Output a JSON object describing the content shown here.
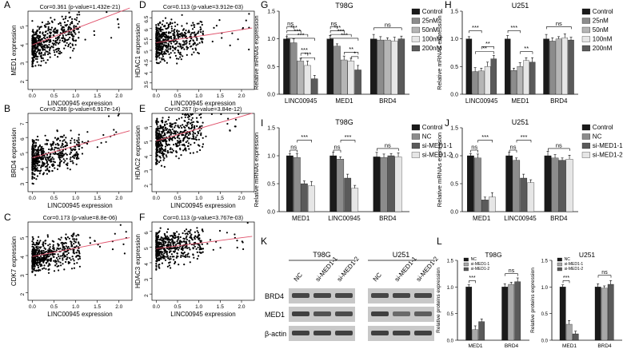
{
  "scatter_panels": [
    {
      "letter": "A",
      "cor_text": "Cor=0.361 (p-value=1.432e-21)",
      "xlabel": "LINC00945 expression",
      "ylabel": "MED1 expression",
      "xticks": [
        "0.0",
        "0.5",
        "1.0",
        "1.5",
        "2.0"
      ],
      "yticks": [
        "2",
        "3",
        "4",
        "5"
      ],
      "xlim": [
        -0.1,
        2.3
      ],
      "ylim": [
        1.5,
        5.8
      ],
      "fit": [
        3.95,
        0.9
      ],
      "center": 4.0,
      "spread": 0.55
    },
    {
      "letter": "B",
      "cor_text": "Cor=0.286 (p-value=6.917e-14)",
      "xlabel": "LINC00945 expression",
      "ylabel": "BRD4 expression",
      "xticks": [
        "0.0",
        "0.5",
        "1.0",
        "1.5",
        "2.0"
      ],
      "yticks": [
        "3",
        "4",
        "5",
        "6",
        "7"
      ],
      "xlim": [
        -0.1,
        2.3
      ],
      "ylim": [
        2.4,
        7.6
      ],
      "fit": [
        4.65,
        0.8
      ],
      "center": 4.7,
      "spread": 0.65
    },
    {
      "letter": "C",
      "cor_text": "Cor=0.173 (p-value=8.8e-06)",
      "xlabel": "LINC00945  expression",
      "ylabel": "CDK7 expression",
      "xticks": [
        "0.0",
        "0.5",
        "1.0",
        "1.5",
        "2.0"
      ],
      "yticks": [
        "2",
        "3",
        "4",
        "5"
      ],
      "xlim": [
        -0.1,
        2.3
      ],
      "ylim": [
        1.6,
        5.8
      ],
      "fit": [
        3.95,
        0.45
      ],
      "center": 4.0,
      "spread": 0.45
    },
    {
      "letter": "D",
      "cor_text": "Cor=0.113 (p-value=3.912e-03)",
      "xlabel": "LINC00945 expression",
      "ylabel": "HDAC1 expression",
      "xticks": [
        "0.0",
        "0.5",
        "1.0",
        "1.5",
        "2.0"
      ],
      "yticks": [
        "3.5",
        "4",
        "4.5",
        "5",
        "5.5",
        "6",
        "6.5"
      ],
      "xlim": [
        -0.1,
        2.3
      ],
      "ylim": [
        3.2,
        6.8
      ],
      "fit": [
        5.35,
        0.3
      ],
      "center": 5.4,
      "spread": 0.45
    },
    {
      "letter": "E",
      "cor_text": "Cor=0.267 (p-value=3.84e-12)",
      "xlabel": "LINC00945 expression",
      "ylabel": "HDAC2 expression",
      "xticks": [
        "0.0",
        "0.5",
        "1.0",
        "1.5",
        "2.0"
      ],
      "yticks": [
        "2",
        "3",
        "4",
        "5",
        "6"
      ],
      "xlim": [
        -0.1,
        2.3
      ],
      "ylim": [
        1.5,
        6.9
      ],
      "fit": [
        5.0,
        0.85
      ],
      "center": 5.1,
      "spread": 0.8
    },
    {
      "letter": "F",
      "cor_text": "Cor=0.113 (p-value=3.767e-03)",
      "xlabel": "LINC00945 expression",
      "ylabel": "HDAC3 expression",
      "xticks": [
        "0.0",
        "0.5",
        "1.0",
        "1.5",
        "2.0"
      ],
      "yticks": [
        "2",
        "3",
        "4",
        "5",
        "6"
      ],
      "xlim": [
        -0.1,
        2.3
      ],
      "ylim": [
        1.6,
        6.6
      ],
      "fit": [
        4.9,
        0.35
      ],
      "center": 5.0,
      "spread": 0.55
    }
  ],
  "bar_panels": [
    {
      "letter": "G",
      "title": "T98G",
      "ylabel": "Relative mRNAs expression",
      "yticks": [
        "0.0",
        "0.5",
        "1.0",
        "1.5"
      ],
      "ymax": 1.5,
      "groups": [
        "LINC00945",
        "MED1",
        "BRD4"
      ],
      "legend": [
        "Control",
        "25nM",
        "50nM",
        "100nM",
        "200nM"
      ],
      "colors": [
        "#1a1a1a",
        "#8c8c8c",
        "#b5b5b5",
        "#e6e6e6",
        "#5a5a5a"
      ],
      "values": [
        [
          1.0,
          0.93,
          0.6,
          0.52,
          0.28
        ],
        [
          1.0,
          0.87,
          0.62,
          0.6,
          0.44
        ],
        [
          1.0,
          0.98,
          0.98,
          0.96,
          1.0
        ]
      ],
      "sig": [
        {
          "g": 0,
          "a": 0,
          "b": 1,
          "t": "ns",
          "y": 1.22
        },
        {
          "g": 0,
          "a": 0,
          "b": 2,
          "t": "***",
          "y": 1.15
        },
        {
          "g": 0,
          "a": 0,
          "b": 3,
          "t": "***",
          "y": 1.08
        },
        {
          "g": 0,
          "a": 0,
          "b": 4,
          "t": "***",
          "y": 1.01
        },
        {
          "g": 0,
          "a": 2,
          "b": 3,
          "t": "***",
          "y": 0.74
        },
        {
          "g": 0,
          "a": 2,
          "b": 4,
          "t": "***",
          "y": 0.66
        },
        {
          "g": 1,
          "a": 0,
          "b": 1,
          "t": "ns",
          "y": 1.22
        },
        {
          "g": 1,
          "a": 0,
          "b": 2,
          "t": "***",
          "y": 1.15
        },
        {
          "g": 1,
          "a": 0,
          "b": 3,
          "t": "***",
          "y": 1.08
        },
        {
          "g": 1,
          "a": 0,
          "b": 4,
          "t": "***",
          "y": 1.01
        },
        {
          "g": 1,
          "a": 2,
          "b": 4,
          "t": "**",
          "y": 0.76
        },
        {
          "g": 1,
          "a": 3,
          "b": 4,
          "t": "*",
          "y": 0.68
        },
        {
          "g": 2,
          "a": 0,
          "b": 4,
          "t": "ns",
          "y": 1.2
        }
      ]
    },
    {
      "letter": "H",
      "title": "U251",
      "ylabel": "Relative mRNAs expression",
      "yticks": [
        "0.0",
        "0.5",
        "1.0",
        "1.5"
      ],
      "ymax": 1.5,
      "groups": [
        "LINC00945",
        "MED1",
        "BRD4"
      ],
      "legend": [
        "Control",
        "25nM",
        "50nM",
        "100nM",
        "200nM"
      ],
      "colors": [
        "#1a1a1a",
        "#8c8c8c",
        "#b5b5b5",
        "#e6e6e6",
        "#5a5a5a"
      ],
      "values": [
        [
          1.0,
          0.41,
          0.42,
          0.5,
          0.64
        ],
        [
          1.0,
          0.43,
          0.5,
          0.61,
          0.58
        ],
        [
          1.0,
          0.96,
          1.0,
          1.02,
          0.98
        ]
      ],
      "sig": [
        {
          "g": 0,
          "a": 0,
          "b": 2,
          "t": "***",
          "y": 1.15
        },
        {
          "g": 0,
          "a": 2,
          "b": 4,
          "t": "**",
          "y": 0.86
        },
        {
          "g": 0,
          "a": 1,
          "b": 4,
          "t": "**",
          "y": 0.77
        },
        {
          "g": 1,
          "a": 0,
          "b": 2,
          "t": "***",
          "y": 1.15
        },
        {
          "g": 1,
          "a": 2,
          "b": 4,
          "t": "**",
          "y": 0.77
        },
        {
          "g": 2,
          "a": 0,
          "b": 4,
          "t": "ns",
          "y": 1.22
        }
      ]
    },
    {
      "letter": "I",
      "title": "T98G",
      "ylabel": "Relative mRNAs expression",
      "yticks": [
        "0.0",
        "0.5",
        "1.0",
        "1.5"
      ],
      "ymax": 1.5,
      "groups": [
        "MED1",
        "LINC00945",
        "BRD4"
      ],
      "legend": [
        "Control",
        "NC",
        "si-MED1-1",
        "si-MED1-2"
      ],
      "colors": [
        "#1a1a1a",
        "#8c8c8c",
        "#5a5a5a",
        "#e6e6e6"
      ],
      "values": [
        [
          1.0,
          0.97,
          0.5,
          0.46
        ],
        [
          1.0,
          0.94,
          0.6,
          0.42
        ],
        [
          0.98,
          0.97,
          1.0,
          0.98
        ]
      ],
      "sig": [
        {
          "g": 0,
          "a": 0,
          "b": 1,
          "t": "ns",
          "y": 1.1
        },
        {
          "g": 0,
          "a": 1,
          "b": 3,
          "t": "***",
          "y": 1.28
        },
        {
          "g": 1,
          "a": 0,
          "b": 1,
          "t": "ns",
          "y": 1.1
        },
        {
          "g": 1,
          "a": 1,
          "b": 3,
          "t": "***",
          "y": 1.28
        },
        {
          "g": 2,
          "a": 0,
          "b": 3,
          "t": "ns",
          "y": 1.13
        }
      ]
    },
    {
      "letter": "J",
      "title": "U251",
      "ylabel": "Relative mRNAs expression",
      "yticks": [
        "0.0",
        "0.5",
        "1.0",
        "1.5"
      ],
      "ymax": 1.5,
      "groups": [
        "MED1",
        "LINC00945",
        "BRD4"
      ],
      "legend": [
        "Control",
        "NC",
        "si-MED1-1",
        "si-MED1-2"
      ],
      "colors": [
        "#1a1a1a",
        "#8c8c8c",
        "#5a5a5a",
        "#e6e6e6"
      ],
      "values": [
        [
          1.0,
          0.96,
          0.21,
          0.26
        ],
        [
          1.0,
          0.92,
          0.6,
          0.52
        ],
        [
          1.0,
          0.96,
          0.92,
          0.94
        ]
      ],
      "sig": [
        {
          "g": 0,
          "a": 0,
          "b": 1,
          "t": "ns",
          "y": 1.1
        },
        {
          "g": 0,
          "a": 1,
          "b": 3,
          "t": "***",
          "y": 1.28
        },
        {
          "g": 1,
          "a": 0,
          "b": 1,
          "t": "ns",
          "y": 1.1
        },
        {
          "g": 1,
          "a": 1,
          "b": 3,
          "t": "***",
          "y": 1.28
        },
        {
          "g": 2,
          "a": 0,
          "b": 3,
          "t": "ns",
          "y": 1.13
        }
      ]
    }
  ],
  "western": {
    "letter": "K",
    "cell_lines": [
      "T98G",
      "U251"
    ],
    "lanes": [
      "NC",
      "si-MED1-1",
      "si-MED1-2"
    ],
    "rows": [
      "BRD4",
      "MED1",
      "β-actin"
    ],
    "intensity": [
      [
        [
          0.75,
          0.75,
          0.75
        ],
        [
          0.8,
          0.65,
          0.7
        ],
        [
          0.8,
          0.8,
          0.8
        ]
      ],
      [
        [
          0.75,
          0.75,
          0.75
        ],
        [
          0.8,
          0.45,
          0.55
        ],
        [
          0.8,
          0.8,
          0.8
        ]
      ]
    ]
  },
  "protein_bars": {
    "letter": "L",
    "panels": [
      {
        "title": "T98G",
        "ylabel": "Relative proteins expression",
        "yticks": [
          "0.0",
          "0.5",
          "1.0",
          "1.5"
        ],
        "ymax": 1.5,
        "groups": [
          "MED1",
          "BRD4"
        ],
        "legend": [
          "NC",
          "si-MED1-1",
          "si-MED1-2"
        ],
        "colors": [
          "#1a1a1a",
          "#a8a8a8",
          "#5a5a5a"
        ],
        "values": [
          [
            1.0,
            0.2,
            0.35
          ],
          [
            1.0,
            1.05,
            1.1
          ]
        ],
        "sig": [
          {
            "g": 0,
            "a": 0,
            "b": 1,
            "t": "***",
            "y": 1.12
          },
          {
            "g": 1,
            "a": 0,
            "b": 2,
            "t": "ns",
            "y": 1.25
          }
        ]
      },
      {
        "title": "U251",
        "ylabel": "Relative proteins expression",
        "yticks": [
          "0.0",
          "0.5",
          "1.0",
          "1.5"
        ],
        "ymax": 1.5,
        "groups": [
          "MED1",
          "BRD4"
        ],
        "legend": [
          "NC",
          "si-MED1-1",
          "si-MED1-2"
        ],
        "colors": [
          "#1a1a1a",
          "#a8a8a8",
          "#5a5a5a"
        ],
        "values": [
          [
            1.0,
            0.3,
            0.12
          ],
          [
            1.0,
            0.98,
            1.05
          ]
        ],
        "sig": [
          {
            "g": 0,
            "a": 0,
            "b": 1,
            "t": "***",
            "y": 1.12
          },
          {
            "g": 1,
            "a": 0,
            "b": 2,
            "t": "ns",
            "y": 1.22
          }
        ]
      }
    ]
  },
  "chart_data": [
    {
      "type": "scatter",
      "panel": "A",
      "title": "Cor=0.361 (p-value=1.432e-21)",
      "xlabel": "LINC00945 expression",
      "ylabel": "MED1 expression"
    },
    {
      "type": "scatter",
      "panel": "B",
      "title": "Cor=0.286 (p-value=6.917e-14)",
      "xlabel": "LINC00945 expression",
      "ylabel": "BRD4 expression"
    },
    {
      "type": "scatter",
      "panel": "C",
      "title": "Cor=0.173 (p-value=8.8e-06)",
      "xlabel": "LINC00945  expression",
      "ylabel": "CDK7 expression"
    },
    {
      "type": "scatter",
      "panel": "D",
      "title": "Cor=0.113 (p-value=3.912e-03)",
      "xlabel": "LINC00945 expression",
      "ylabel": "HDAC1 expression"
    },
    {
      "type": "scatter",
      "panel": "E",
      "title": "Cor=0.267 (p-value=3.84e-12)",
      "xlabel": "LINC00945 expression",
      "ylabel": "HDAC2 expression"
    },
    {
      "type": "scatter",
      "panel": "F",
      "title": "Cor=0.113 (p-value=3.767e-03)",
      "xlabel": "LINC00945 expression",
      "ylabel": "HDAC3 expression"
    },
    {
      "type": "bar",
      "panel": "G",
      "title": "T98G",
      "categories": [
        "LINC00945",
        "MED1",
        "BRD4"
      ],
      "series": [
        {
          "name": "Control",
          "values": [
            1.0,
            1.0,
            1.0
          ]
        },
        {
          "name": "25nM",
          "values": [
            0.93,
            0.87,
            0.98
          ]
        },
        {
          "name": "50nM",
          "values": [
            0.6,
            0.62,
            0.98
          ]
        },
        {
          "name": "100nM",
          "values": [
            0.52,
            0.6,
            0.96
          ]
        },
        {
          "name": "200nM",
          "values": [
            0.28,
            0.44,
            1.0
          ]
        }
      ],
      "ylabel": "Relative mRNAs expression",
      "ylim": [
        0,
        1.5
      ]
    },
    {
      "type": "bar",
      "panel": "H",
      "title": "U251",
      "categories": [
        "LINC00945",
        "MED1",
        "BRD4"
      ],
      "series": [
        {
          "name": "Control",
          "values": [
            1.0,
            1.0,
            1.0
          ]
        },
        {
          "name": "25nM",
          "values": [
            0.41,
            0.43,
            0.96
          ]
        },
        {
          "name": "50nM",
          "values": [
            0.42,
            0.5,
            1.0
          ]
        },
        {
          "name": "100nM",
          "values": [
            0.5,
            0.61,
            1.02
          ]
        },
        {
          "name": "200nM",
          "values": [
            0.64,
            0.58,
            0.98
          ]
        }
      ],
      "ylabel": "Relative mRNAs expression",
      "ylim": [
        0,
        1.5
      ]
    },
    {
      "type": "bar",
      "panel": "I",
      "title": "T98G",
      "categories": [
        "MED1",
        "LINC00945",
        "BRD4"
      ],
      "series": [
        {
          "name": "Control",
          "values": [
            1.0,
            1.0,
            0.98
          ]
        },
        {
          "name": "NC",
          "values": [
            0.97,
            0.94,
            0.97
          ]
        },
        {
          "name": "si-MED1-1",
          "values": [
            0.5,
            0.6,
            1.0
          ]
        },
        {
          "name": "si-MED1-2",
          "values": [
            0.46,
            0.42,
            0.98
          ]
        }
      ],
      "ylabel": "Relative mRNAs expression",
      "ylim": [
        0,
        1.5
      ]
    },
    {
      "type": "bar",
      "panel": "J",
      "title": "U251",
      "categories": [
        "MED1",
        "LINC00945",
        "BRD4"
      ],
      "series": [
        {
          "name": "Control",
          "values": [
            1.0,
            1.0,
            1.0
          ]
        },
        {
          "name": "NC",
          "values": [
            0.96,
            0.92,
            0.96
          ]
        },
        {
          "name": "si-MED1-1",
          "values": [
            0.21,
            0.6,
            0.92
          ]
        },
        {
          "name": "si-MED1-2",
          "values": [
            0.26,
            0.52,
            0.94
          ]
        }
      ],
      "ylabel": "Relative mRNAs expression",
      "ylim": [
        0,
        1.5
      ]
    },
    {
      "type": "bar",
      "panel": "L",
      "title": "T98G",
      "categories": [
        "MED1",
        "BRD4"
      ],
      "series": [
        {
          "name": "NC",
          "values": [
            1.0,
            1.0
          ]
        },
        {
          "name": "si-MED1-1",
          "values": [
            0.2,
            1.05
          ]
        },
        {
          "name": "si-MED1-2",
          "values": [
            0.35,
            1.1
          ]
        }
      ],
      "ylabel": "Relative proteins expression",
      "ylim": [
        0,
        1.5
      ]
    },
    {
      "type": "bar",
      "panel": "L",
      "title": "U251",
      "categories": [
        "MED1",
        "BRD4"
      ],
      "series": [
        {
          "name": "NC",
          "values": [
            1.0,
            1.0
          ]
        },
        {
          "name": "si-MED1-1",
          "values": [
            0.3,
            0.98
          ]
        },
        {
          "name": "si-MED1-2",
          "values": [
            0.12,
            1.05
          ]
        }
      ],
      "ylabel": "Relative proteins expression",
      "ylim": [
        0,
        1.5
      ]
    }
  ]
}
